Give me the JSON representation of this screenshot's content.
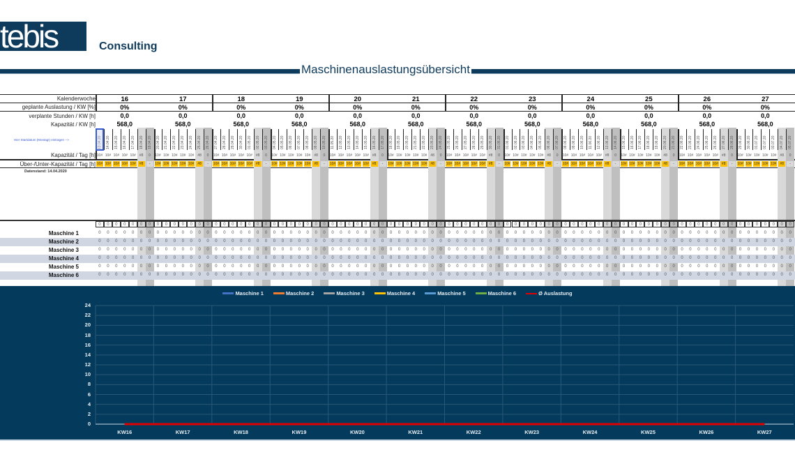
{
  "header": {
    "logo_text": "tebis",
    "company_suffix": "Consulting",
    "title": "Maschinenauslastungsübersicht",
    "brand_color": "#0e3b5c"
  },
  "table": {
    "row_labels": {
      "week": "Kalenderwoche",
      "planned_util": "geplante Auslastung / KW [%]",
      "planned_hours": "verplante Stunden / KW [h]",
      "capacity_week": "Kapazität / KW [h]",
      "start_hint": "Hier Startdatum (Montag!) eintragen -->",
      "capacity_day": "Kapazität / Tag [h]",
      "over_under": "Über-/Unter-Kapazität / Tag [h]"
    },
    "data_status": "Datenstand: 14.04.2020",
    "weeks": [
      {
        "kw": "16",
        "util": "0%",
        "hours": "0,0",
        "capacity": "568,0",
        "dates": [
          "13.04.20",
          "14.04.20",
          "15.04.20",
          "16.04.20",
          "17.04.20",
          "18.04.20",
          "19.04.20"
        ]
      },
      {
        "kw": "17",
        "util": "0%",
        "hours": "0,0",
        "capacity": "568,0",
        "dates": [
          "20.04.20",
          "21.04.20",
          "22.04.20",
          "23.04.20",
          "24.04.20",
          "25.04.20",
          "26.04.20"
        ]
      },
      {
        "kw": "18",
        "util": "0%",
        "hours": "0,0",
        "capacity": "568,0",
        "dates": [
          "27.04.20",
          "28.04.20",
          "29.04.20",
          "30.04.20",
          "01.05.20",
          "02.05.20",
          "03.05.20"
        ]
      },
      {
        "kw": "19",
        "util": "0%",
        "hours": "0,0",
        "capacity": "568,0",
        "dates": [
          "04.05.20",
          "05.05.20",
          "06.05.20",
          "07.05.20",
          "08.05.20",
          "09.05.20",
          "10.05.20"
        ]
      },
      {
        "kw": "20",
        "util": "0%",
        "hours": "0,0",
        "capacity": "568,0",
        "dates": [
          "11.05.20",
          "12.05.20",
          "13.05.20",
          "14.05.20",
          "15.05.20",
          "16.05.20",
          "17.05.20"
        ]
      },
      {
        "kw": "21",
        "util": "0%",
        "hours": "0,0",
        "capacity": "568,0",
        "dates": [
          "18.05.20",
          "19.05.20",
          "20.05.20",
          "21.05.20",
          "22.05.20",
          "23.05.20",
          "24.05.20"
        ]
      },
      {
        "kw": "22",
        "util": "0%",
        "hours": "0,0",
        "capacity": "568,0",
        "dates": [
          "25.05.20",
          "26.05.20",
          "27.05.20",
          "28.05.20",
          "29.05.20",
          "30.05.20",
          "31.05.20"
        ]
      },
      {
        "kw": "23",
        "util": "0%",
        "hours": "0,0",
        "capacity": "568,0",
        "dates": [
          "01.06.20",
          "02.06.20",
          "03.06.20",
          "04.06.20",
          "05.06.20",
          "06.06.20",
          "07.06.20"
        ]
      },
      {
        "kw": "24",
        "util": "0%",
        "hours": "0,0",
        "capacity": "568,0",
        "dates": [
          "08.06.20",
          "09.06.20",
          "10.06.20",
          "11.06.20",
          "12.06.20",
          "13.06.20",
          "14.06.20"
        ]
      },
      {
        "kw": "25",
        "util": "0%",
        "hours": "0,0",
        "capacity": "568,0",
        "dates": [
          "15.06.20",
          "16.06.20",
          "17.06.20",
          "18.06.20",
          "19.06.20",
          "20.06.20",
          "21.06.20"
        ]
      },
      {
        "kw": "26",
        "util": "0%",
        "hours": "0,0",
        "capacity": "568,0",
        "dates": [
          "22.06.20",
          "23.06.20",
          "24.06.20",
          "25.06.20",
          "26.06.20",
          "27.06.20",
          "28.06.20"
        ]
      },
      {
        "kw": "27",
        "util": "0%",
        "hours": "0,0",
        "capacity": "568,0",
        "dates": [
          "29.06.20",
          "30.06.20",
          "01.07.20",
          "02.07.20",
          "03.07.20",
          "04.07.20",
          "05.07.20"
        ]
      }
    ],
    "day_capacity": [
      "10#",
      "10#",
      "10#",
      "10#",
      "10#",
      "#8",
      "0"
    ],
    "day_over_under": [
      "10#",
      "10#",
      "10#",
      "10#",
      "10#",
      "#8",
      "-"
    ],
    "cell_value": "0",
    "machines": [
      "Maschine 1",
      "Maschine 2",
      "Maschine 3",
      "Maschine 4",
      "Maschine 5",
      "Maschine 6"
    ],
    "colors": {
      "accent_yellow": "#ffc000",
      "sat_gray": "#d9d9d9",
      "sun_gray": "#bfbfbf",
      "alt_row": "#d0d7e3"
    }
  },
  "chart_data": {
    "type": "line",
    "title": "",
    "xlabel": "",
    "ylabel": "",
    "categories": [
      "KW16",
      "KW17",
      "KW18",
      "KW19",
      "KW20",
      "KW21",
      "KW22",
      "KW23",
      "KW24",
      "KW25",
      "KW26",
      "KW27"
    ],
    "ylim": [
      0,
      24
    ],
    "yticks": [
      "0",
      "2",
      "4",
      "6",
      "8",
      "10",
      "12",
      "14",
      "16",
      "18",
      "20",
      "22",
      "24"
    ],
    "grid": true,
    "legend_position": "top",
    "series": [
      {
        "name": "Maschine 1",
        "color": "#4472c4",
        "values": [
          0,
          0,
          0,
          0,
          0,
          0,
          0,
          0,
          0,
          0,
          0,
          0
        ]
      },
      {
        "name": "Maschine 2",
        "color": "#ed7d31",
        "values": [
          0,
          0,
          0,
          0,
          0,
          0,
          0,
          0,
          0,
          0,
          0,
          0
        ]
      },
      {
        "name": "Maschine 3",
        "color": "#a5a5a5",
        "values": [
          0,
          0,
          0,
          0,
          0,
          0,
          0,
          0,
          0,
          0,
          0,
          0
        ]
      },
      {
        "name": "Maschine 4",
        "color": "#ffc000",
        "values": [
          0,
          0,
          0,
          0,
          0,
          0,
          0,
          0,
          0,
          0,
          0,
          0
        ]
      },
      {
        "name": "Maschine 5",
        "color": "#5b9bd5",
        "values": [
          0,
          0,
          0,
          0,
          0,
          0,
          0,
          0,
          0,
          0,
          0,
          0
        ]
      },
      {
        "name": "Maschine 6",
        "color": "#70ad47",
        "values": [
          0,
          0,
          0,
          0,
          0,
          0,
          0,
          0,
          0,
          0,
          0,
          0
        ]
      },
      {
        "name": "Ø Auslastung",
        "color": "#e00000",
        "type": "line",
        "values": [
          0,
          0,
          0,
          0,
          0,
          0,
          0,
          0,
          0,
          0,
          0,
          0
        ]
      }
    ]
  }
}
